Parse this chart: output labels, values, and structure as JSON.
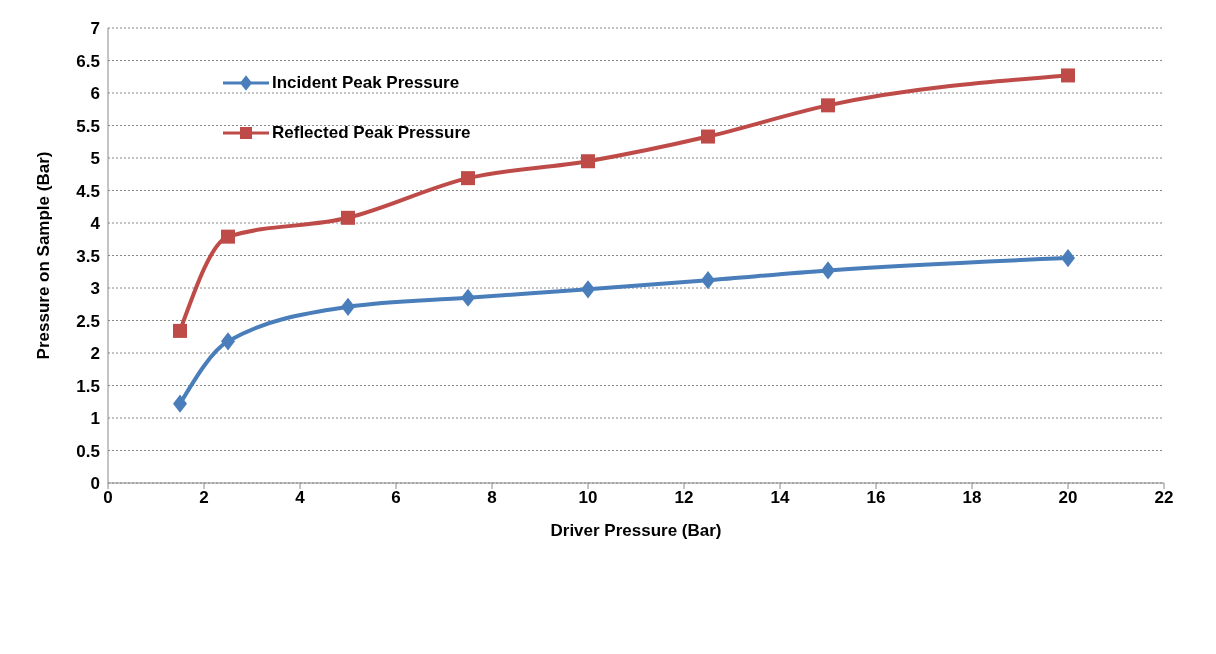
{
  "chart_data": {
    "type": "line",
    "xlabel": "Driver Pressure  (Bar)",
    "ylabel": "Pressure on Sample (Bar)",
    "x": [
      1.5,
      2.5,
      5,
      7.5,
      10,
      12.5,
      15,
      20
    ],
    "series": [
      {
        "name": "Incident Peak Pressure",
        "color": "#4a7ebb",
        "marker": "diamond",
        "values": [
          1.22,
          2.18,
          2.71,
          2.85,
          2.98,
          3.12,
          3.27,
          3.46
        ]
      },
      {
        "name": "Reflected Peak Pressure",
        "color": "#be4b48",
        "marker": "square",
        "values": [
          2.34,
          3.79,
          4.08,
          4.69,
          4.95,
          5.33,
          5.81,
          6.27
        ]
      }
    ],
    "xlim": [
      0,
      22
    ],
    "xticks": [
      0,
      2,
      4,
      6,
      8,
      10,
      12,
      14,
      16,
      18,
      20,
      22
    ],
    "ylim": [
      0,
      7
    ],
    "yticks": [
      0,
      0.5,
      1,
      1.5,
      2,
      2.5,
      3,
      3.5,
      4,
      4.5,
      5,
      5.5,
      6,
      6.5,
      7
    ],
    "grid": "y",
    "legend": "top left",
    "line_style": "solid"
  }
}
